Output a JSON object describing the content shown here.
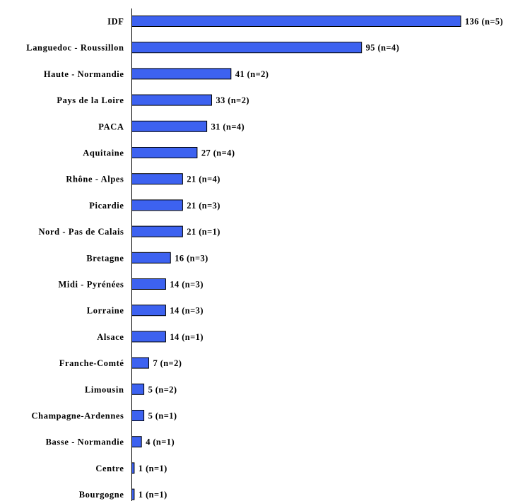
{
  "chart_data": {
    "type": "bar",
    "orientation": "horizontal",
    "categories": [
      "IDF",
      "Languedoc - Roussillon",
      "Haute - Normandie",
      "Pays de la Loire",
      "PACA",
      "Aquitaine",
      "Rhône - Alpes",
      "Picardie",
      "Nord - Pas de Calais",
      "Bretagne",
      "Midi - Pyrénées",
      "Lorraine",
      "Alsace",
      "Franche-Comté",
      "Limousin",
      "Champagne-Ardennes",
      "Basse - Normandie",
      "Centre",
      "Bourgogne"
    ],
    "values": [
      136,
      95,
      41,
      33,
      31,
      27,
      21,
      21,
      21,
      16,
      14,
      14,
      14,
      7,
      5,
      5,
      4,
      1,
      1
    ],
    "data_labels": [
      "136 (n=5)",
      "95 (n=4)",
      "41 (n=2)",
      "33 (n=2)",
      "31 (n=4)",
      "27 (n=4)",
      "21 (n=4)",
      "21 (n=3)",
      "21 (n=1)",
      "16 (n=3)",
      "14 (n=3)",
      "14 (n=3)",
      "14 (n=1)",
      "7 (n=2)",
      "5 (n=2)",
      "5 (n=1)",
      "4 (n=1)",
      "1 (n=1)",
      "1 (n=1)"
    ],
    "title": "",
    "xlabel": "",
    "ylabel": "",
    "xlim": [
      0,
      136
    ],
    "grid": false,
    "legend": "none",
    "bar_color": "#3d62f0",
    "bar_border_color": "#000000"
  }
}
